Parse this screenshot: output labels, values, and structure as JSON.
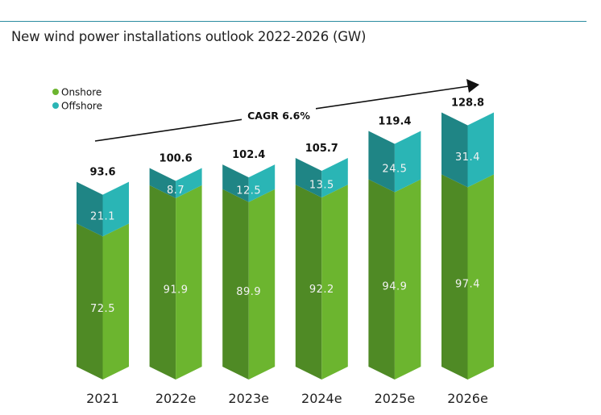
{
  "chart_data": {
    "type": "bar",
    "stacked": true,
    "title": "New wind power installations outlook 2022-2026 (GW)",
    "categories": [
      "2021",
      "2022e",
      "2023e",
      "2024e",
      "2025e",
      "2026e"
    ],
    "series": [
      {
        "name": "Onshore",
        "values": [
          72.5,
          91.9,
          89.9,
          92.2,
          94.9,
          97.4
        ],
        "color": "#6cb52f",
        "shade": "#4f8a25"
      },
      {
        "name": "Offshore",
        "values": [
          21.1,
          8.7,
          12.5,
          13.5,
          24.5,
          31.4
        ],
        "color": "#2ab5b5",
        "shade": "#1f8585"
      }
    ],
    "totals": [
      "93.6",
      "100.6",
      "102.4",
      "105.7",
      "119.4",
      "128.8"
    ],
    "annotation": "CAGR 6.6%",
    "legend_position": "top-left",
    "grid": false
  }
}
